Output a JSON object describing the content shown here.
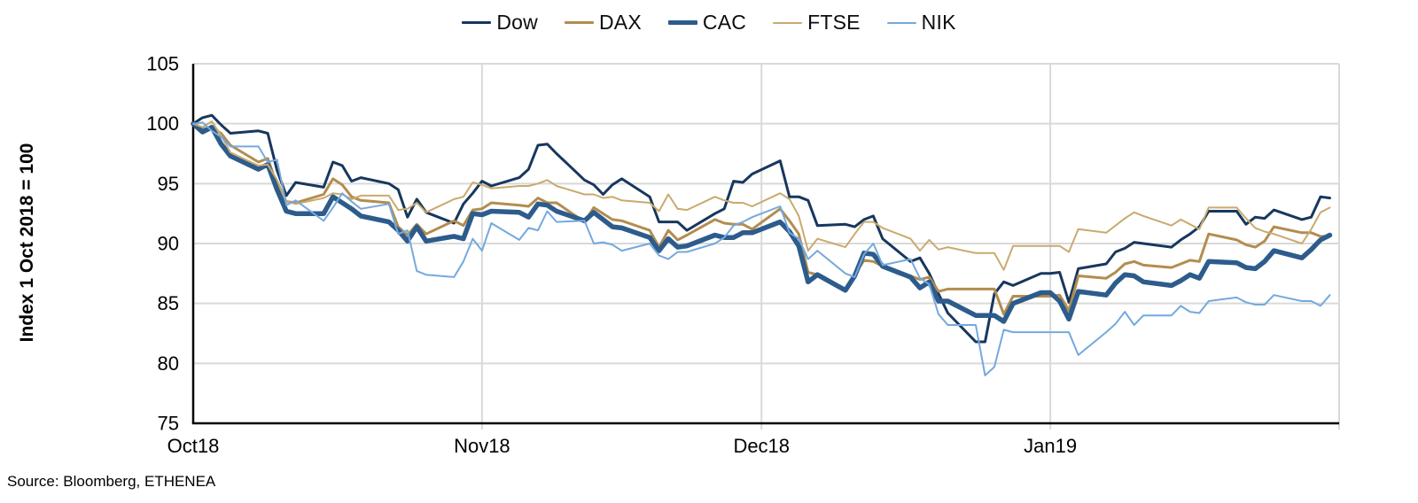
{
  "source": "Source: Bloomberg, ETHENEA",
  "colors": {
    "gridline": "#d9d9d9",
    "axis": "#000000",
    "tick_text": "#000000"
  },
  "chart_data": {
    "type": "line",
    "title": "",
    "xlabel": "",
    "ylabel": "Index 1 Oct 2018 = 100",
    "ylim": [
      75,
      105
    ],
    "y_ticks": [
      75,
      80,
      85,
      90,
      95,
      100,
      105
    ],
    "grid": true,
    "legend_position": "top",
    "x_start": "2018-10-01",
    "x_end": "2019-02-01",
    "x_ticks": [
      {
        "label": "Oct18",
        "date": "2018-10-01"
      },
      {
        "label": "Nov18",
        "date": "2018-11-01"
      },
      {
        "label": "Dec18",
        "date": "2018-12-01"
      },
      {
        "label": "Jan19",
        "date": "2019-01-01"
      }
    ],
    "x_gridlines": [
      "2018-11-01",
      "2018-12-01",
      "2019-01-01",
      "2019-02-01"
    ],
    "dates": [
      "2018-10-01",
      "2018-10-02",
      "2018-10-03",
      "2018-10-04",
      "2018-10-05",
      "2018-10-08",
      "2018-10-09",
      "2018-10-10",
      "2018-10-11",
      "2018-10-12",
      "2018-10-15",
      "2018-10-16",
      "2018-10-17",
      "2018-10-18",
      "2018-10-19",
      "2018-10-22",
      "2018-10-23",
      "2018-10-24",
      "2018-10-25",
      "2018-10-26",
      "2018-10-29",
      "2018-10-30",
      "2018-10-31",
      "2018-11-01",
      "2018-11-02",
      "2018-11-05",
      "2018-11-06",
      "2018-11-07",
      "2018-11-08",
      "2018-11-09",
      "2018-11-12",
      "2018-11-13",
      "2018-11-14",
      "2018-11-15",
      "2018-11-16",
      "2018-11-19",
      "2018-11-20",
      "2018-11-21",
      "2018-11-22",
      "2018-11-23",
      "2018-11-26",
      "2018-11-27",
      "2018-11-28",
      "2018-11-29",
      "2018-11-30",
      "2018-12-03",
      "2018-12-04",
      "2018-12-05",
      "2018-12-06",
      "2018-12-07",
      "2018-12-10",
      "2018-12-11",
      "2018-12-12",
      "2018-12-13",
      "2018-12-14",
      "2018-12-17",
      "2018-12-18",
      "2018-12-19",
      "2018-12-20",
      "2018-12-21",
      "2018-12-24",
      "2018-12-25",
      "2018-12-26",
      "2018-12-27",
      "2018-12-28",
      "2018-12-31",
      "2019-01-01",
      "2019-01-02",
      "2019-01-03",
      "2019-01-04",
      "2019-01-07",
      "2019-01-08",
      "2019-01-09",
      "2019-01-10",
      "2019-01-11",
      "2019-01-14",
      "2019-01-15",
      "2019-01-16",
      "2019-01-17",
      "2019-01-18",
      "2019-01-21",
      "2019-01-22",
      "2019-01-23",
      "2019-01-24",
      "2019-01-25",
      "2019-01-28",
      "2019-01-29",
      "2019-01-30",
      "2019-01-31"
    ],
    "series": [
      {
        "name": "Dow",
        "color": "#17375e",
        "line_width": 3,
        "values": [
          100,
          100.5,
          100.7,
          99.9,
          99.2,
          99.4,
          99.2,
          96.1,
          94,
          95.1,
          94.7,
          96.8,
          96.5,
          95.2,
          95.5,
          95,
          94.5,
          92.2,
          93.7,
          92.6,
          91.7,
          93.3,
          94.2,
          95.2,
          94.8,
          95.5,
          96.2,
          98.2,
          98.3,
          97.5,
          95.3,
          94.9,
          94.1,
          94.9,
          95.4,
          93.9,
          91.8,
          91.8,
          91.8,
          91.1,
          92.5,
          92.9,
          95.2,
          95.1,
          95.8,
          96.9,
          93.9,
          93.9,
          93.6,
          91.5,
          91.6,
          91.4,
          92,
          92.3,
          90.4,
          88.5,
          88.8,
          87.5,
          85.8,
          84.2,
          81.8,
          81.8,
          85.8,
          86.8,
          86.5,
          87.5,
          87.5,
          87.6,
          85.1,
          87.9,
          88.3,
          89.3,
          89.6,
          90.1,
          90,
          89.7,
          90.3,
          90.8,
          91.4,
          92.7,
          92.7,
          91.6,
          92.2,
          92.1,
          92.8,
          92,
          92.2,
          93.9,
          93.8
        ]
      },
      {
        "name": "DAX",
        "color": "#b28d4f",
        "line_width": 3,
        "values": [
          100,
          99.6,
          99.6,
          99.2,
          98.2,
          96.8,
          97.1,
          94.9,
          93.5,
          93.4,
          94.1,
          95.4,
          94.9,
          93.9,
          93.6,
          93.4,
          91.4,
          90.7,
          91.6,
          90.8,
          91.9,
          91.5,
          92.8,
          92.9,
          93.4,
          93.2,
          93.1,
          93.8,
          93.4,
          93.4,
          91.8,
          93,
          92.5,
          92,
          91.9,
          91.1,
          89.7,
          91.1,
          90.3,
          90.7,
          92,
          91.7,
          91.6,
          91.6,
          91.2,
          92.9,
          91.9,
          90.8,
          87.6,
          87.4,
          86.1,
          87.4,
          88.6,
          88.5,
          88.1,
          87.3,
          87,
          87.2,
          86,
          86.2,
          86.2,
          86.2,
          86.2,
          84.1,
          85.6,
          85.6,
          85.6,
          85.7,
          84.4,
          87.3,
          87.1,
          87.6,
          88.3,
          88.5,
          88.2,
          88,
          88.3,
          88.6,
          88.5,
          90.8,
          90.3,
          89.9,
          89.7,
          90.2,
          91.4,
          90.9,
          90.9,
          90.6,
          90.6
        ]
      },
      {
        "name": "CAC",
        "color": "#2d5c8c",
        "line_width": 5.5,
        "values": [
          100,
          99.3,
          99.7,
          98.3,
          97.3,
          96.2,
          96.6,
          94.5,
          92.7,
          92.5,
          92.5,
          93.9,
          93.4,
          92.9,
          92.3,
          91.8,
          91.1,
          90.2,
          91.4,
          90.2,
          90.6,
          90.4,
          92.5,
          92.4,
          92.7,
          92.6,
          92.2,
          93.3,
          93.2,
          92.7,
          91.9,
          92.6,
          92,
          91.4,
          91.3,
          90.5,
          89.4,
          90.4,
          89.7,
          89.8,
          90.7,
          90.5,
          90.5,
          90.9,
          90.9,
          91.8,
          91,
          89.8,
          86.8,
          87.4,
          86.1,
          87.3,
          89.2,
          89.1,
          88.1,
          87.2,
          86.3,
          86.8,
          85.2,
          85.2,
          84,
          84,
          84,
          83.5,
          85,
          85.9,
          85.9,
          85.2,
          83.7,
          86,
          85.7,
          86.7,
          87.4,
          87.3,
          86.8,
          86.5,
          86.9,
          87.4,
          87.1,
          88.5,
          88.4,
          88,
          87.9,
          88.5,
          89.4,
          88.8,
          89.5,
          90.3,
          90.7
        ]
      },
      {
        "name": "FTSE",
        "color": "#c9aa6e",
        "line_width": 2,
        "values": [
          100,
          99.7,
          100.2,
          99,
          97.6,
          96.5,
          96.6,
          95.3,
          93.5,
          93.3,
          93.8,
          94.2,
          94.1,
          93.7,
          94,
          94,
          92.8,
          92.9,
          93.4,
          92.6,
          93.7,
          93.9,
          95.1,
          94.9,
          94.6,
          94.8,
          94.8,
          95,
          95.3,
          94.8,
          94.1,
          94.1,
          93.8,
          93.9,
          93.6,
          93.4,
          92.7,
          94.1,
          92.9,
          92.8,
          93.9,
          93.6,
          93.4,
          93.4,
          93.1,
          94.2,
          93.7,
          92.3,
          89.4,
          90.4,
          89.7,
          90.8,
          91.8,
          91.8,
          91.3,
          90.4,
          89.4,
          90.3,
          89.5,
          89.7,
          89.2,
          89.2,
          89.2,
          87.8,
          89.8,
          89.8,
          89.8,
          89.8,
          89.3,
          91.2,
          90.9,
          91.5,
          92.1,
          92.6,
          92.3,
          91.5,
          92,
          91.6,
          91.2,
          93,
          93,
          92.1,
          91.3,
          91,
          90.8,
          90,
          91.2,
          92.6,
          93
        ]
      },
      {
        "name": "NIK",
        "color": "#74a9dd",
        "line_width": 2,
        "values": [
          100,
          100.1,
          99.4,
          98.9,
          98.1,
          98.1,
          96.8,
          97,
          93.2,
          93.6,
          91.9,
          93,
          94.2,
          93.5,
          92.9,
          93.3,
          90.8,
          91.1,
          87.7,
          87.4,
          87.2,
          88.5,
          90.4,
          89.4,
          91.7,
          90.3,
          91.3,
          91.1,
          92.7,
          91.8,
          91.9,
          90,
          90.1,
          89.9,
          89.4,
          90,
          89,
          88.7,
          89.3,
          89.3,
          90,
          90.5,
          91.5,
          91.8,
          92.2,
          93.1,
          90.9,
          90.4,
          88.7,
          89.4,
          87.5,
          87.2,
          89.1,
          90,
          88.2,
          88.7,
          87.1,
          86.6,
          84.1,
          83.2,
          83.2,
          79,
          79.7,
          82.8,
          82.6,
          82.6,
          82.6,
          82.6,
          82.6,
          80.7,
          82.6,
          83.3,
          84.3,
          83.2,
          84,
          84,
          84.8,
          84.3,
          84.2,
          85.2,
          85.5,
          85.1,
          84.9,
          84.9,
          85.7,
          85.2,
          85.2,
          84.8,
          85.7
        ]
      }
    ]
  }
}
